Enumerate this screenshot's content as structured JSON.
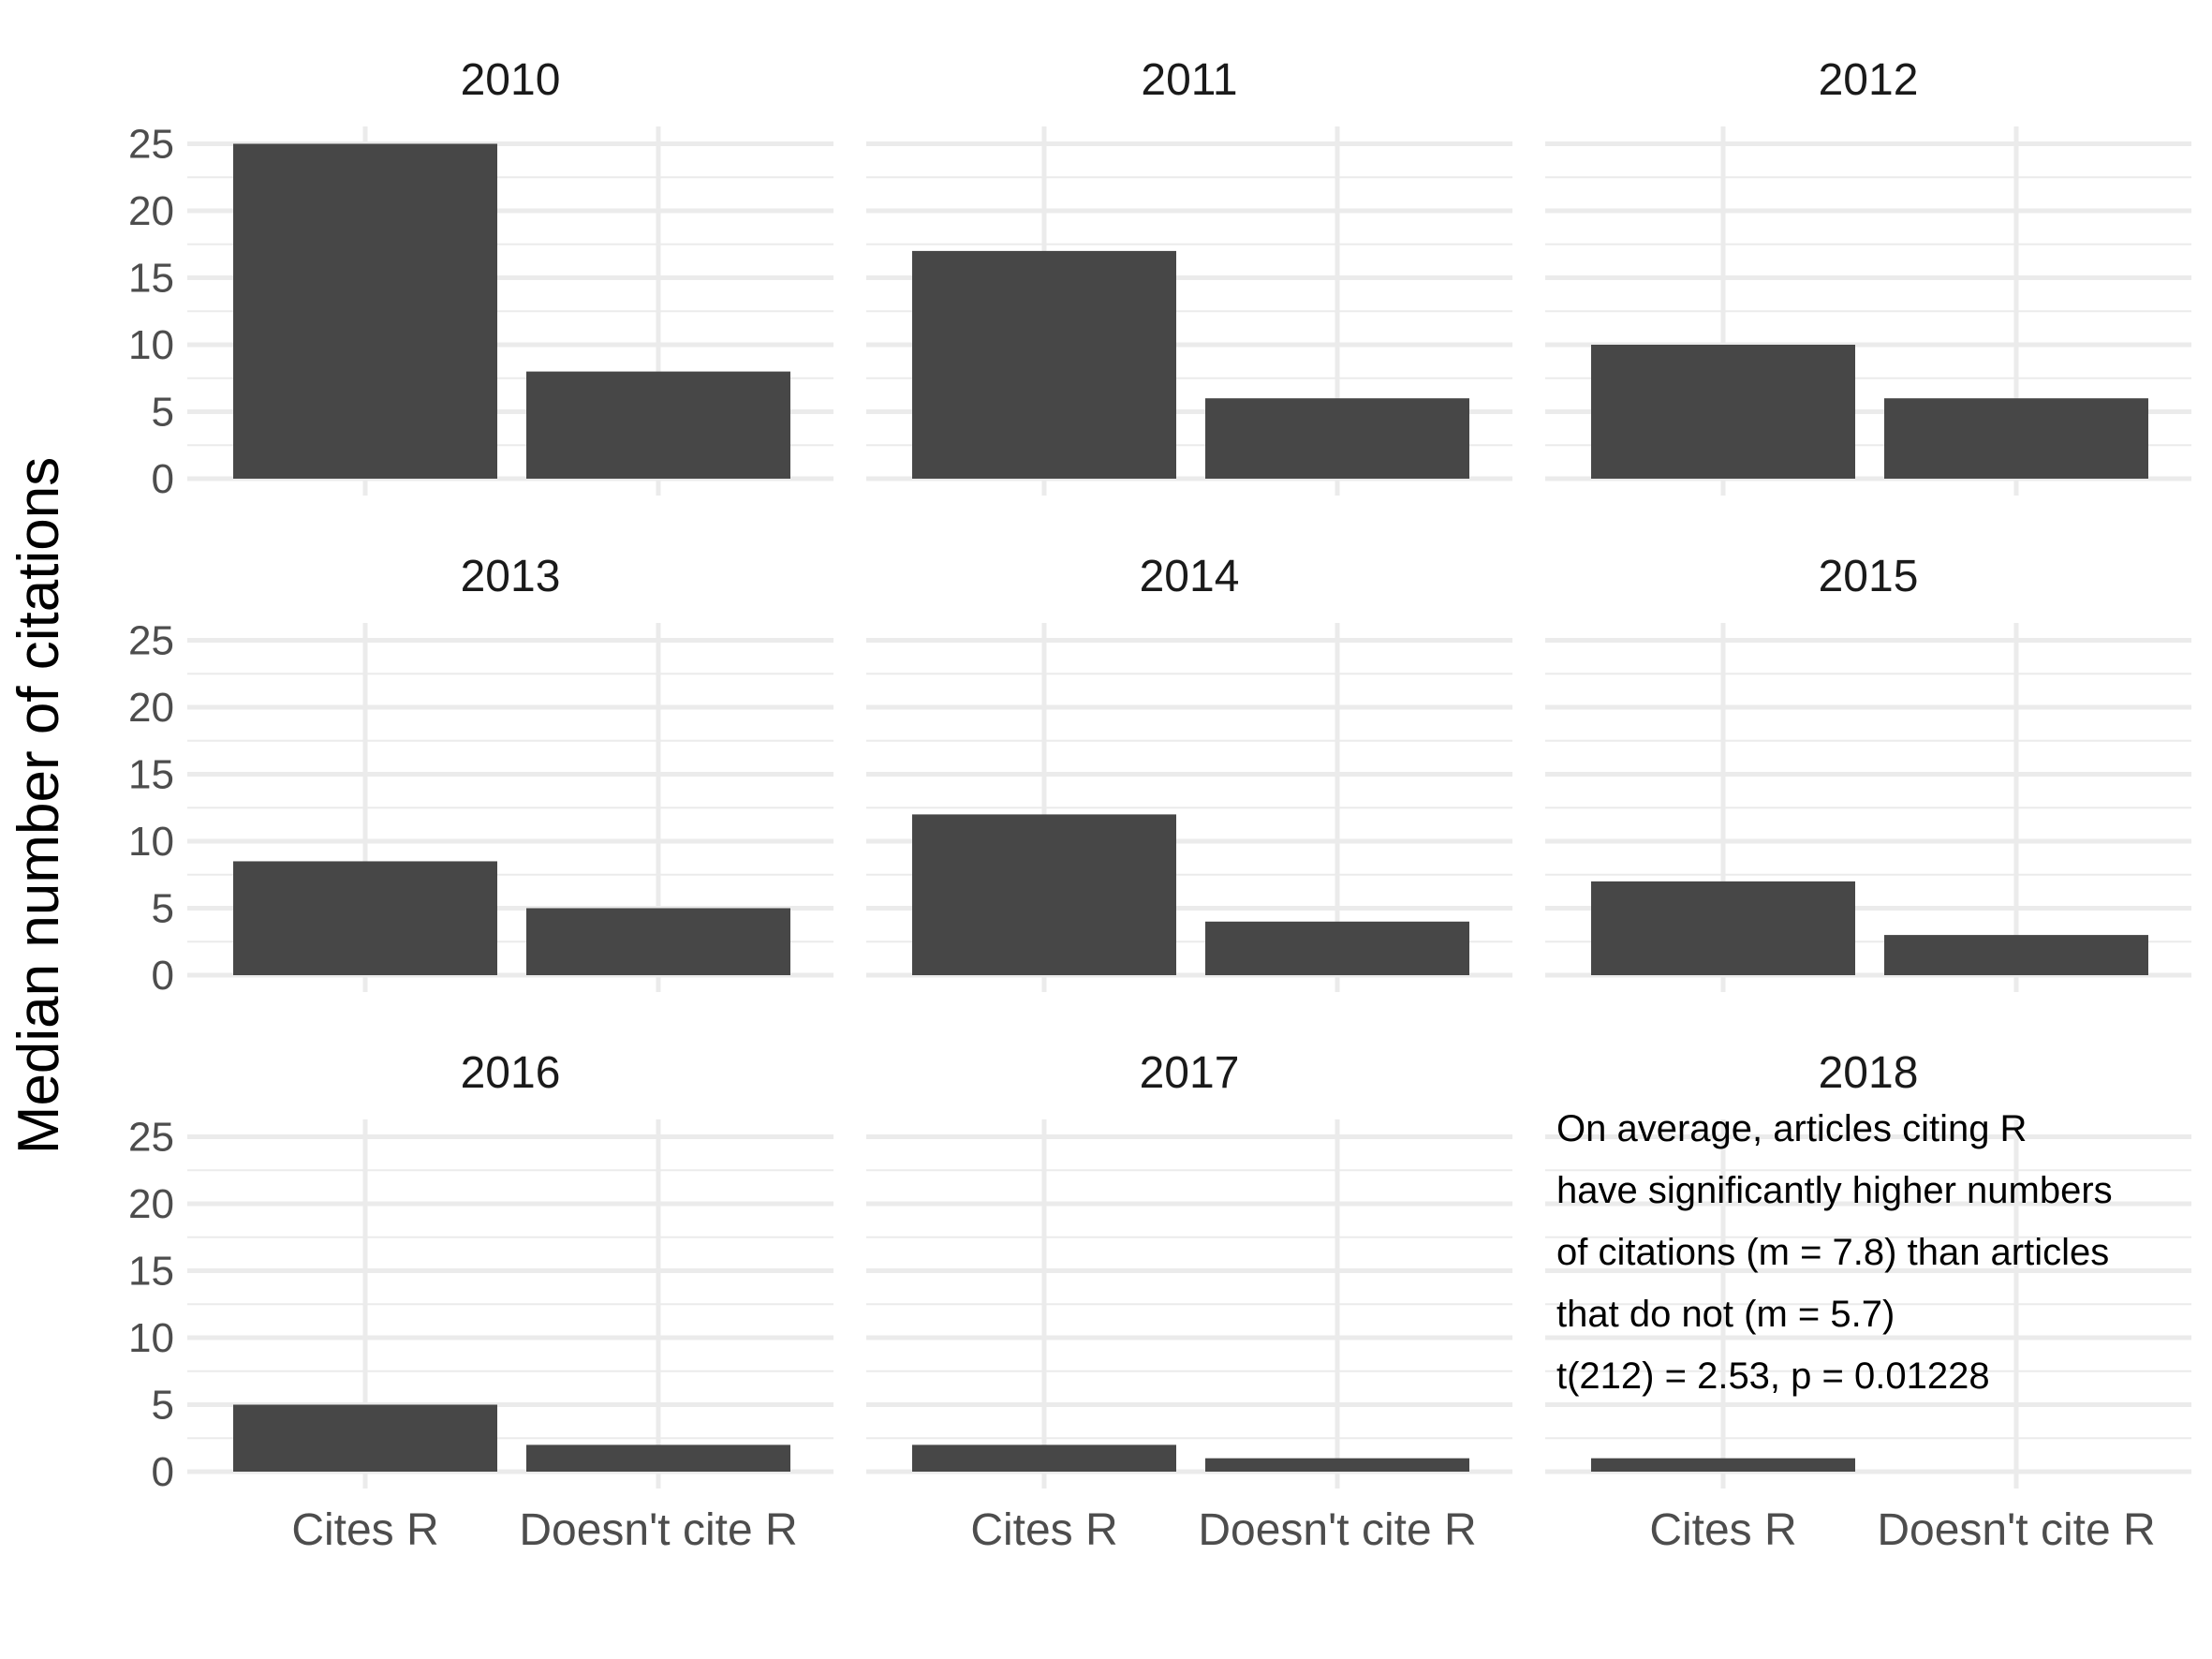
{
  "chart_data": {
    "type": "bar",
    "layout": "facets",
    "ylabel": "Median number of citations",
    "xlabel": "",
    "ylim": [
      0,
      25
    ],
    "yticks": [
      0,
      5,
      10,
      15,
      20,
      25
    ],
    "grid": true,
    "bar_color": "#474747",
    "grid_color": "#ebebeb",
    "categories": [
      "Cites R",
      "Doesn't cite R"
    ],
    "facets": [
      {
        "title": "2010",
        "values": [
          25,
          8
        ]
      },
      {
        "title": "2011",
        "values": [
          17,
          6
        ]
      },
      {
        "title": "2012",
        "values": [
          10,
          6
        ]
      },
      {
        "title": "2013",
        "values": [
          8.5,
          5
        ]
      },
      {
        "title": "2014",
        "values": [
          12,
          4
        ]
      },
      {
        "title": "2015",
        "values": [
          7,
          3
        ]
      },
      {
        "title": "2016",
        "values": [
          5,
          2
        ]
      },
      {
        "title": "2017",
        "values": [
          2,
          1
        ]
      },
      {
        "title": "2018",
        "values": [
          1,
          0
        ]
      }
    ],
    "annotation": {
      "lines": [
        "On average, articles citing R",
        "have significantly higher numbers",
        "of citations (m = 7.8) than articles",
        "that do not (m =  5.7)",
        "t(212) = 2.53, p =  0.01228"
      ]
    }
  }
}
